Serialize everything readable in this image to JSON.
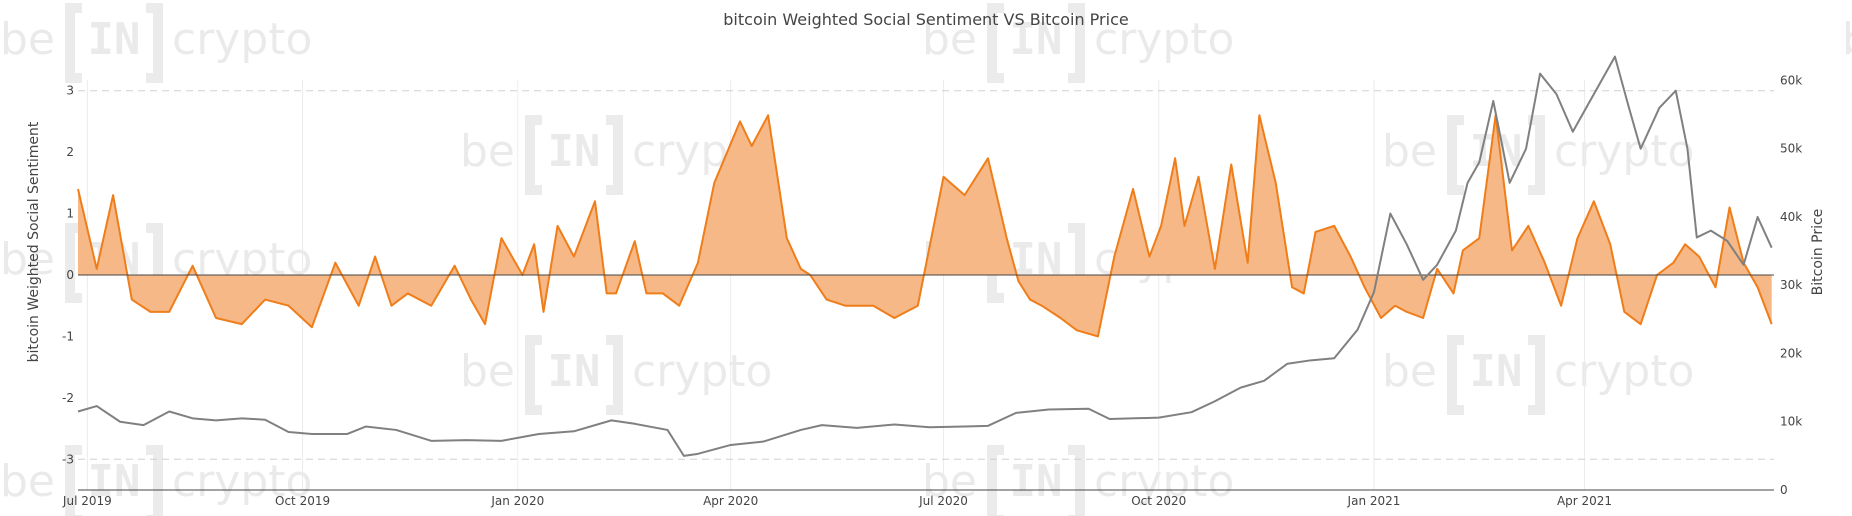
{
  "chart_data": {
    "type": "area",
    "title": "bitcoin Weighted Social Sentiment VS Bitcoin Price",
    "xlabel": "",
    "ylabel_left": "bitcoin Weighted Social Sentiment",
    "ylabel_right": "Bitcoin Price",
    "x_ticks": [
      "Jul 2019",
      "Oct 2019",
      "Jan 2020",
      "Apr 2020",
      "Jul 2020",
      "Oct 2020",
      "Jan 2021",
      "Apr 2021"
    ],
    "x_tick_dates": [
      "2019-07-01",
      "2019-10-01",
      "2020-01-01",
      "2020-04-01",
      "2020-07-01",
      "2020-10-01",
      "2021-01-01",
      "2021-04-01"
    ],
    "x_range": [
      "2019-06-27",
      "2021-06-21"
    ],
    "y_left_ticks": [
      3,
      2,
      1,
      0,
      -1,
      -2,
      -3
    ],
    "y_left_range": [
      -3.5,
      3.5
    ],
    "y_right_ticks": [
      "60k",
      "50k",
      "40k",
      "30k",
      "20k",
      "10k",
      "0"
    ],
    "y_right_tick_values": [
      60000,
      50000,
      40000,
      30000,
      20000,
      10000,
      0
    ],
    "y_right_range": [
      0,
      63000
    ],
    "grid": "vertical gridlines at month ticks; dashed horizontal lines at y = 3 and y = -3",
    "legend": "none",
    "colors": {
      "sentiment_fill": "#f6b886",
      "sentiment_line": "#ef7d1a",
      "price_line": "#808080",
      "grid": "#ececec",
      "zero_line": "#444444",
      "text": "#444444"
    },
    "watermark": [
      "be",
      "IN",
      "crypto"
    ],
    "series": [
      {
        "axis": "left",
        "color": "#ef7d1a",
        "x": [
          "2019-06-27",
          "2019-07-05",
          "2019-07-12",
          "2019-07-20",
          "2019-07-28",
          "2019-08-05",
          "2019-08-15",
          "2019-08-25",
          "2019-09-05",
          "2019-09-15",
          "2019-09-25",
          "2019-10-05",
          "2019-10-15",
          "2019-10-25",
          "2019-11-01",
          "2019-11-08",
          "2019-11-15",
          "2019-11-25",
          "2019-12-05",
          "2019-12-12",
          "2019-12-18",
          "2019-12-25",
          "2020-01-03",
          "2020-01-08",
          "2020-01-12",
          "2020-01-18",
          "2020-01-25",
          "2020-02-03",
          "2020-02-08",
          "2020-02-12",
          "2020-02-20",
          "2020-02-25",
          "2020-03-03",
          "2020-03-10",
          "2020-03-18",
          "2020-03-25",
          "2020-04-05",
          "2020-04-10",
          "2020-04-17",
          "2020-04-25",
          "2020-05-01",
          "2020-05-05",
          "2020-05-12",
          "2020-05-20",
          "2020-06-01",
          "2020-06-10",
          "2020-06-20",
          "2020-07-01",
          "2020-07-10",
          "2020-07-20",
          "2020-07-28",
          "2020-08-02",
          "2020-08-07",
          "2020-08-12",
          "2020-08-20",
          "2020-08-27",
          "2020-09-05",
          "2020-09-12",
          "2020-09-20",
          "2020-09-27",
          "2020-10-02",
          "2020-10-08",
          "2020-10-12",
          "2020-10-18",
          "2020-10-25",
          "2020-11-01",
          "2020-11-08",
          "2020-11-13",
          "2020-11-20",
          "2020-11-27",
          "2020-12-02",
          "2020-12-07",
          "2020-12-15",
          "2020-12-22",
          "2020-12-28",
          "2021-01-04",
          "2021-01-10",
          "2021-01-15",
          "2021-01-22",
          "2021-01-28",
          "2021-02-04",
          "2021-02-08",
          "2021-02-15",
          "2021-02-22",
          "2021-03-01",
          "2021-03-08",
          "2021-03-15",
          "2021-03-22",
          "2021-03-29",
          "2021-04-05",
          "2021-04-12",
          "2021-04-18",
          "2021-04-25",
          "2021-05-02",
          "2021-05-09",
          "2021-05-14",
          "2021-05-20",
          "2021-05-27",
          "2021-06-02",
          "2021-06-08",
          "2021-06-14",
          "2021-06-20"
        ],
        "values": [
          1.4,
          0.1,
          1.3,
          -0.4,
          -0.6,
          -0.6,
          0.15,
          -0.7,
          -0.8,
          -0.4,
          -0.5,
          -0.85,
          0.2,
          -0.5,
          0.3,
          -0.5,
          -0.3,
          -0.5,
          0.15,
          -0.4,
          -0.8,
          0.6,
          0.0,
          0.5,
          -0.6,
          0.8,
          0.3,
          1.2,
          -0.3,
          -0.3,
          0.55,
          -0.3,
          -0.3,
          -0.5,
          0.2,
          1.5,
          2.5,
          2.1,
          2.6,
          0.6,
          0.1,
          0.0,
          -0.4,
          -0.5,
          -0.5,
          -0.7,
          -0.5,
          1.6,
          1.3,
          1.9,
          0.6,
          -0.1,
          -0.4,
          -0.5,
          -0.7,
          -0.9,
          -1.0,
          0.3,
          1.4,
          0.3,
          0.8,
          1.9,
          0.8,
          1.6,
          0.1,
          1.8,
          0.2,
          2.6,
          1.5,
          -0.2,
          -0.3,
          0.7,
          0.8,
          0.3,
          -0.2,
          -0.7,
          -0.5,
          -0.6,
          -0.7,
          0.1,
          -0.3,
          0.4,
          0.6,
          2.6,
          0.4,
          0.8,
          0.2,
          -0.5,
          0.6,
          1.2,
          0.5,
          -0.6,
          -0.8,
          0.0,
          0.2,
          0.5,
          0.3,
          -0.2,
          1.1,
          0.2,
          -0.2,
          -0.8
        ]
      },
      {
        "axis": "right",
        "color": "#808080",
        "x": [
          "2019-06-27",
          "2019-07-05",
          "2019-07-15",
          "2019-07-25",
          "2019-08-05",
          "2019-08-15",
          "2019-08-25",
          "2019-09-05",
          "2019-09-15",
          "2019-09-25",
          "2019-10-05",
          "2019-10-20",
          "2019-10-28",
          "2019-11-10",
          "2019-11-25",
          "2019-12-10",
          "2019-12-25",
          "2020-01-10",
          "2020-01-25",
          "2020-02-10",
          "2020-02-20",
          "2020-03-05",
          "2020-03-12",
          "2020-03-18",
          "2020-04-01",
          "2020-04-15",
          "2020-05-01",
          "2020-05-10",
          "2020-05-25",
          "2020-06-10",
          "2020-06-25",
          "2020-07-10",
          "2020-07-20",
          "2020-08-01",
          "2020-08-15",
          "2020-09-01",
          "2020-09-10",
          "2020-10-01",
          "2020-10-15",
          "2020-10-25",
          "2020-11-05",
          "2020-11-15",
          "2020-11-25",
          "2020-12-05",
          "2020-12-15",
          "2020-12-25",
          "2021-01-01",
          "2021-01-08",
          "2021-01-15",
          "2021-01-22",
          "2021-01-28",
          "2021-02-05",
          "2021-02-10",
          "2021-02-15",
          "2021-02-21",
          "2021-02-28",
          "2021-03-07",
          "2021-03-13",
          "2021-03-20",
          "2021-03-27",
          "2021-04-05",
          "2021-04-14",
          "2021-04-20",
          "2021-04-25",
          "2021-05-03",
          "2021-05-10",
          "2021-05-15",
          "2021-05-19",
          "2021-05-25",
          "2021-06-01",
          "2021-06-08",
          "2021-06-14",
          "2021-06-20"
        ],
        "values": [
          11500,
          12300,
          10000,
          9500,
          11500,
          10500,
          10200,
          10500,
          10300,
          8500,
          8200,
          8200,
          9300,
          8800,
          7200,
          7300,
          7200,
          8200,
          8600,
          10200,
          9700,
          8800,
          5000,
          5300,
          6600,
          7100,
          8800,
          9500,
          9100,
          9600,
          9200,
          9300,
          9400,
          11300,
          11800,
          11900,
          10400,
          10600,
          11400,
          13000,
          15000,
          16000,
          18500,
          19000,
          19300,
          23500,
          29000,
          40500,
          36000,
          30800,
          33000,
          38000,
          45000,
          48000,
          57000,
          45000,
          50000,
          61000,
          58000,
          52500,
          58000,
          63500,
          56000,
          50000,
          56000,
          58500,
          50000,
          37000,
          38000,
          36500,
          33000,
          40000,
          35500
        ]
      }
    ]
  }
}
